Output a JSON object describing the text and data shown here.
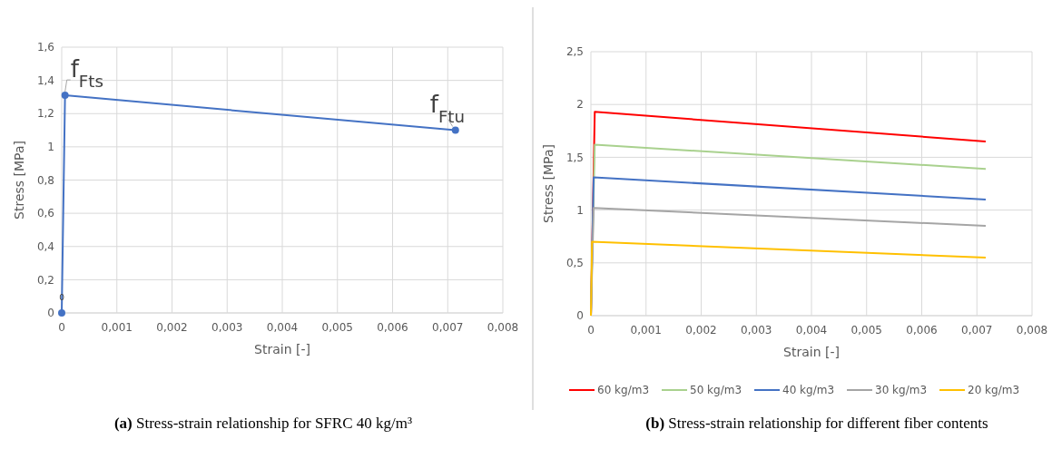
{
  "chart_data": [
    {
      "type": "line",
      "title": "(a) Stress-strain relationship for SFRC 40 kg/m³",
      "xlabel": "Strain [-]",
      "ylabel": "Stress [MPa]",
      "xlim": [
        0,
        0.008
      ],
      "xticks": [
        0,
        {
          "value": 0.001,
          "label": "0,001"
        },
        {
          "value": 0.002,
          "label": "0,002"
        },
        {
          "value": 0.003,
          "label": "0,003"
        },
        {
          "value": 0.004,
          "label": "0,004"
        },
        {
          "value": 0.005,
          "label": "0,005"
        },
        {
          "value": 0.006,
          "label": "0,006"
        },
        {
          "value": 0.007,
          "label": "0,007"
        },
        {
          "value": 0.008,
          "label": "0,008"
        }
      ],
      "ylim": [
        0,
        1.6
      ],
      "yticks": [
        0,
        {
          "value": 0.2,
          "label": "0,2"
        },
        {
          "value": 0.4,
          "label": "0,4"
        },
        {
          "value": 0.6,
          "label": "0,6"
        },
        {
          "value": 0.8,
          "label": "0,8"
        },
        1,
        {
          "value": 1.2,
          "label": "1,2"
        },
        {
          "value": 1.4,
          "label": "1,4"
        },
        {
          "value": 1.6,
          "label": "1,6"
        }
      ],
      "grid": true,
      "legend": false,
      "marker": "circle",
      "line_style": "solid",
      "series": [
        {
          "color": "#4472c4",
          "x": [
            0,
            6e-05,
            0.00714
          ],
          "values": [
            0,
            1.31,
            1.1
          ]
        }
      ],
      "annotations": [
        {
          "text": "0",
          "x": 0,
          "y": 0
        },
        {
          "text": "f$_{Fts}$",
          "x": 6e-05,
          "y": 1.31
        },
        {
          "text": "f$_{Ftu}$",
          "x": 0.00714,
          "y": 1.1
        }
      ]
    },
    {
      "type": "line",
      "title": "(b) Stress-strain relationship for different fiber contents",
      "xlabel": "Strain [-]",
      "ylabel": "Stress [MPa]",
      "xlim": [
        0,
        0.008
      ],
      "xticks": [
        0,
        {
          "value": 0.001,
          "label": "0,001"
        },
        {
          "value": 0.002,
          "label": "0,002"
        },
        {
          "value": 0.003,
          "label": "0,003"
        },
        {
          "value": 0.004,
          "label": "0,004"
        },
        {
          "value": 0.005,
          "label": "0,005"
        },
        {
          "value": 0.006,
          "label": "0,006"
        },
        {
          "value": 0.007,
          "label": "0,007"
        },
        {
          "value": 0.008,
          "label": "0,008"
        }
      ],
      "ylim": [
        0,
        2.5
      ],
      "yticks": [
        0,
        {
          "value": 0.5,
          "label": "0,5"
        },
        1,
        {
          "value": 1.5,
          "label": "1,5"
        },
        2,
        {
          "value": 2.5,
          "label": "2,5"
        }
      ],
      "grid": true,
      "legend": "bottom",
      "line_style": "solid",
      "series": [
        {
          "name": "60 kg/m3",
          "color": "#ff0000",
          "x": [
            0,
            7e-05,
            0.00716
          ],
          "values": [
            0,
            1.93,
            1.65
          ]
        },
        {
          "name": "50 kg/m3",
          "color": "#a9d18e",
          "x": [
            0,
            7e-05,
            0.00716
          ],
          "values": [
            0,
            1.62,
            1.39
          ]
        },
        {
          "name": "40 kg/m3",
          "color": "#4472c4",
          "x": [
            0,
            5e-05,
            0.00716
          ],
          "values": [
            0,
            1.31,
            1.1
          ]
        },
        {
          "name": "30 kg/m3",
          "color": "#a5a5a5",
          "x": [
            0,
            5e-05,
            0.00716
          ],
          "values": [
            0,
            1.02,
            0.85
          ]
        },
        {
          "name": "20 kg/m3",
          "color": "#ffc000",
          "x": [
            0,
            2e-05,
            0.00716
          ],
          "values": [
            0,
            0.7,
            0.55
          ]
        }
      ]
    }
  ]
}
